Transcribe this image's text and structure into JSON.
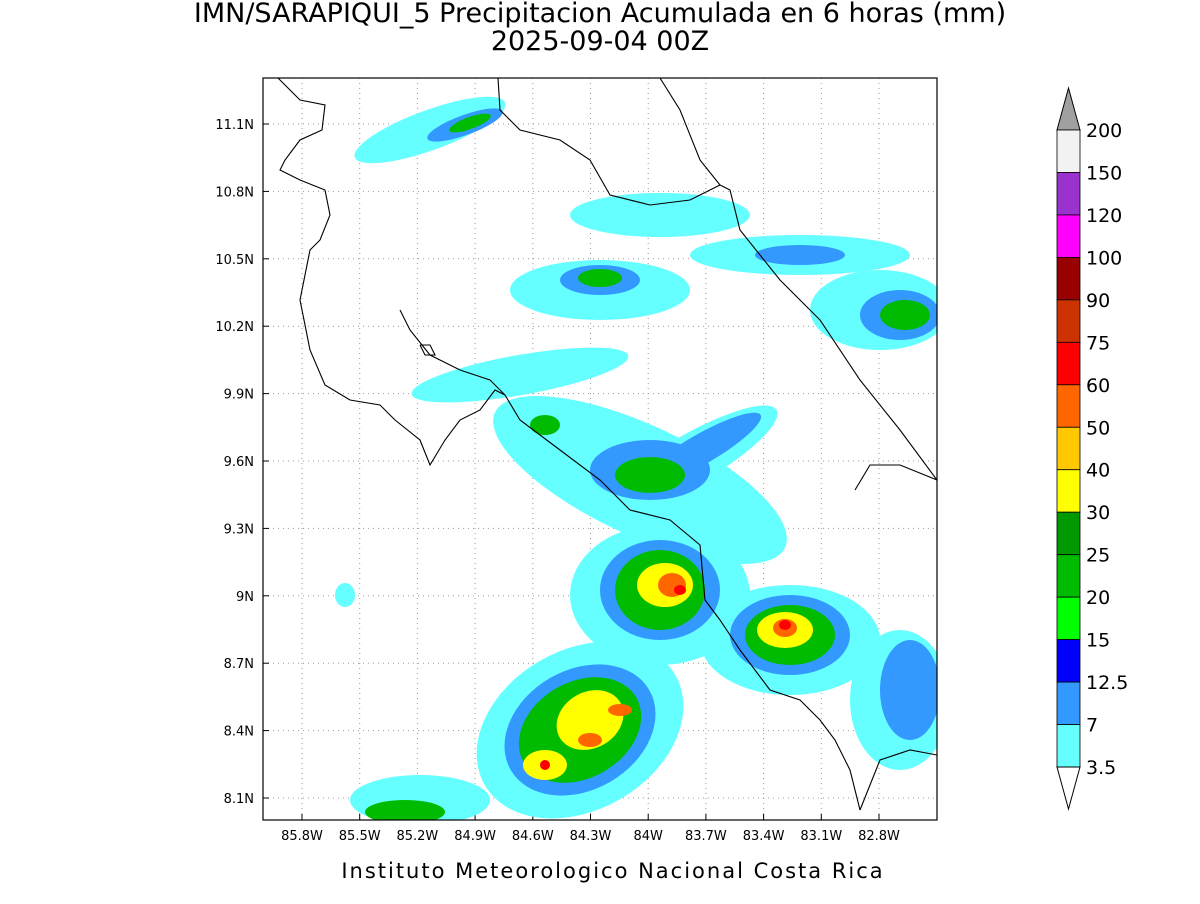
{
  "header": {
    "title": "IMN/SARAPIQUI_5 Precipitacion Acumulada en 6 horas (mm)",
    "subtitle": "2025-09-04 00Z"
  },
  "map": {
    "lat_labels": [
      "11.1N",
      "10.8N",
      "10.5N",
      "10.2N",
      "9.9N",
      "9.6N",
      "9.3N",
      "9N",
      "8.7N",
      "8.4N",
      "8.1N"
    ],
    "lon_labels": [
      "85.8W",
      "85.5W",
      "85.2W",
      "84.9W",
      "84.6W",
      "84.3W",
      "84W",
      "83.7W",
      "83.4W",
      "83.1W",
      "82.8W"
    ]
  },
  "colorbar": {
    "labels": [
      "200",
      "150",
      "120",
      "100",
      "90",
      "75",
      "60",
      "50",
      "40",
      "30",
      "25",
      "20",
      "15",
      "12.5",
      "7",
      "3.5"
    ],
    "colors": [
      "#f2f2f2",
      "#9a32cd",
      "#ff00ff",
      "#990000",
      "#cc3300",
      "#ff0000",
      "#ff6600",
      "#ffc800",
      "#ffff00",
      "#009900",
      "#00bb00",
      "#00ff00",
      "#0000ff",
      "#3399ff",
      "#66ffff"
    ],
    "over_color": "#a0a0a0",
    "under_color": "#ffffff"
  },
  "footer": "Instituto Meteorologico Nacional Costa Rica"
}
